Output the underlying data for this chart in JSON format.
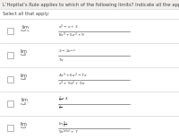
{
  "title": "L’Hopital’s Rule applies to which of the following limits? Indicate all the apply.",
  "subtitle": "Select all that apply:",
  "background_color": "#f0efeb",
  "row_bg": "#ffffff",
  "text_color": "#444444",
  "checkbox_color": "#aaaaaa",
  "line_color": "#cccccc",
  "title_fontsize": 3.8,
  "subtitle_fontsize": 3.6,
  "lim_fontsize": 3.5,
  "expr_fontsize": 3.2,
  "limits": [
    {
      "lim_text": "$\\lim_{x \\to +\\infty}$",
      "expr_num": "$x^2-x+3$",
      "expr_den": "$8x^3+5x^2+9$"
    },
    {
      "lim_text": "$\\lim_{x \\to 0}$",
      "expr_num": "$2-2e^{-x}$",
      "expr_den": "$7x$"
    },
    {
      "lim_text": "$\\lim_{x \\to 0}$",
      "expr_num": "$4x^3+6x^2-7x$",
      "expr_den": "$x^3+9x^2+9x$"
    },
    {
      "lim_text": "$\\lim_{x \\to 0^+}$",
      "expr_num": "$\\frac{2}{x}+4$",
      "expr_den": "$\\frac{1}{x}$"
    },
    {
      "lim_text": "$\\lim_{x \\to 1}$",
      "expr_num": "$\\ln\\!\\left(\\frac{9}{x}\\right)$",
      "expr_den": "$9e^{\\ln(x)}+7$"
    }
  ]
}
